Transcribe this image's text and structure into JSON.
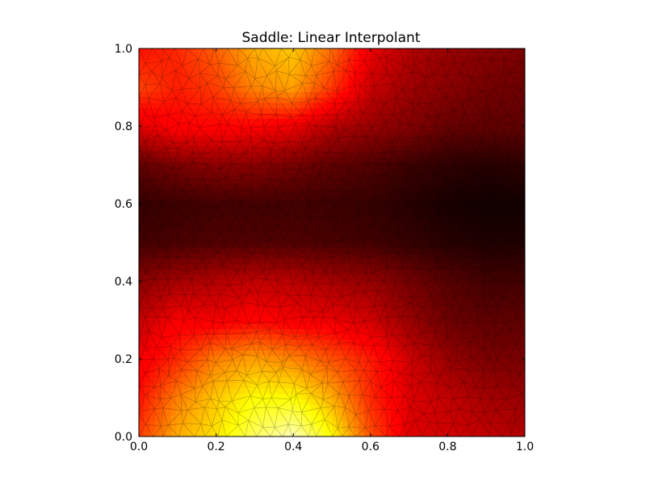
{
  "chart_data": {
    "type": "heatmap",
    "title": "Saddle: Linear Interpolant",
    "xlabel": "",
    "ylabel": "",
    "xlim": [
      0,
      1
    ],
    "ylim": [
      0,
      1
    ],
    "xticks": [
      0.0,
      0.2,
      0.4,
      0.6,
      0.8,
      1.0
    ],
    "yticks": [
      0.0,
      0.2,
      0.4,
      0.6,
      0.8,
      1.0
    ],
    "xtick_labels": [
      "0.0",
      "0.2",
      "0.4",
      "0.6",
      "0.8",
      "1.0"
    ],
    "ytick_labels": [
      "0.0",
      "0.2",
      "0.4",
      "0.6",
      "0.8",
      "1.0"
    ],
    "colormap": "hot",
    "colormap_stops": [
      "#0a0000",
      "#ff0000",
      "#ffff00",
      "#ffffff"
    ],
    "mesh_overlay": "triangulation",
    "mesh_color": "#000000",
    "grid": false,
    "value_grid": {
      "x": [
        0.0,
        0.1,
        0.2,
        0.3,
        0.4,
        0.5,
        0.6,
        0.7,
        0.8,
        0.9,
        1.0
      ],
      "y": [
        0.0,
        0.1,
        0.2,
        0.3,
        0.4,
        0.5,
        0.6,
        0.7,
        0.8,
        0.9,
        1.0
      ],
      "z": [
        [
          0.45,
          0.62,
          0.7,
          0.84,
          0.93,
          0.74,
          0.48,
          0.3,
          0.28,
          0.26,
          0.24
        ],
        [
          0.38,
          0.55,
          0.66,
          0.74,
          0.74,
          0.62,
          0.42,
          0.3,
          0.26,
          0.22,
          0.2
        ],
        [
          0.33,
          0.42,
          0.55,
          0.6,
          0.56,
          0.48,
          0.4,
          0.28,
          0.2,
          0.16,
          0.16
        ],
        [
          0.26,
          0.34,
          0.33,
          0.36,
          0.33,
          0.32,
          0.28,
          0.2,
          0.14,
          0.12,
          0.12
        ],
        [
          0.18,
          0.22,
          0.24,
          0.26,
          0.25,
          0.22,
          0.2,
          0.15,
          0.11,
          0.08,
          0.08
        ],
        [
          0.08,
          0.09,
          0.1,
          0.1,
          0.1,
          0.09,
          0.08,
          0.06,
          0.04,
          0.03,
          0.03
        ],
        [
          0.06,
          0.07,
          0.08,
          0.08,
          0.08,
          0.07,
          0.06,
          0.04,
          0.02,
          0.01,
          0.01
        ],
        [
          0.12,
          0.16,
          0.18,
          0.18,
          0.15,
          0.12,
          0.1,
          0.07,
          0.05,
          0.04,
          0.05
        ],
        [
          0.3,
          0.36,
          0.36,
          0.35,
          0.32,
          0.24,
          0.2,
          0.17,
          0.13,
          0.12,
          0.12
        ],
        [
          0.46,
          0.4,
          0.45,
          0.56,
          0.6,
          0.44,
          0.27,
          0.21,
          0.18,
          0.15,
          0.14
        ],
        [
          0.38,
          0.42,
          0.5,
          0.62,
          0.66,
          0.52,
          0.32,
          0.24,
          0.2,
          0.18,
          0.16
        ]
      ]
    }
  }
}
